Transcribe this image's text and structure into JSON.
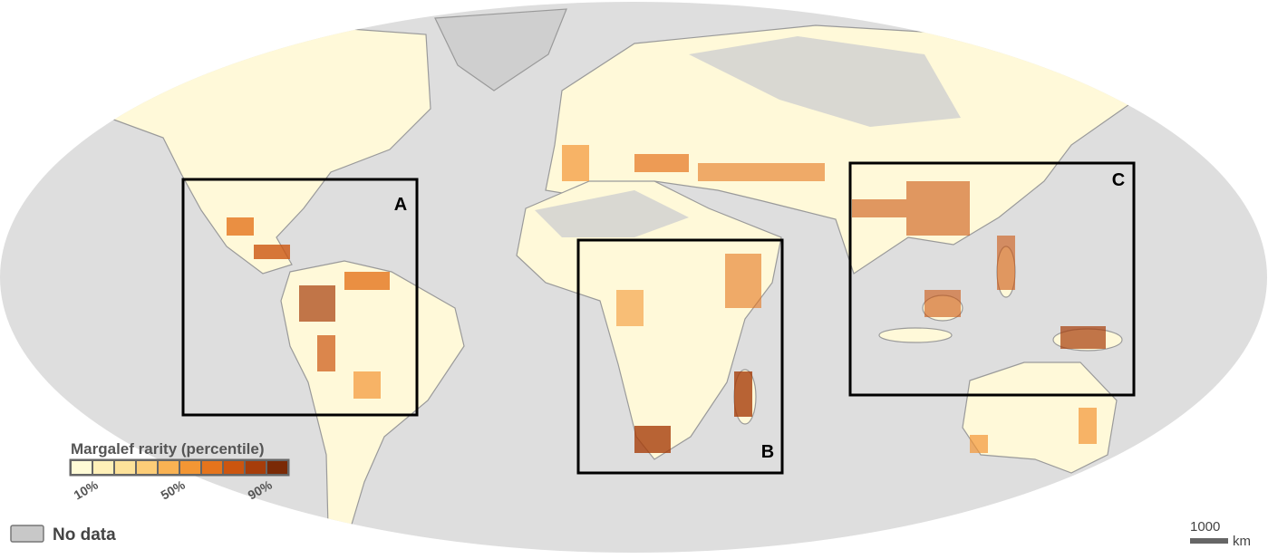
{
  "legend": {
    "title": "Margalef rarity (percentile)",
    "colors": [
      "#fffbd6",
      "#fff0b8",
      "#fde29a",
      "#fccd78",
      "#f9b253",
      "#f39634",
      "#e5741c",
      "#cc550f",
      "#a63d0a",
      "#7a2a06"
    ],
    "ticks": [
      "10%",
      "50%",
      "90%"
    ]
  },
  "boxes": [
    {
      "label": "A"
    },
    {
      "label": "B"
    },
    {
      "label": "C"
    }
  ],
  "no_data": {
    "label": "No data",
    "color": "#c8c8c8"
  },
  "scale_bar": {
    "distance": 1000,
    "unit": "km"
  }
}
